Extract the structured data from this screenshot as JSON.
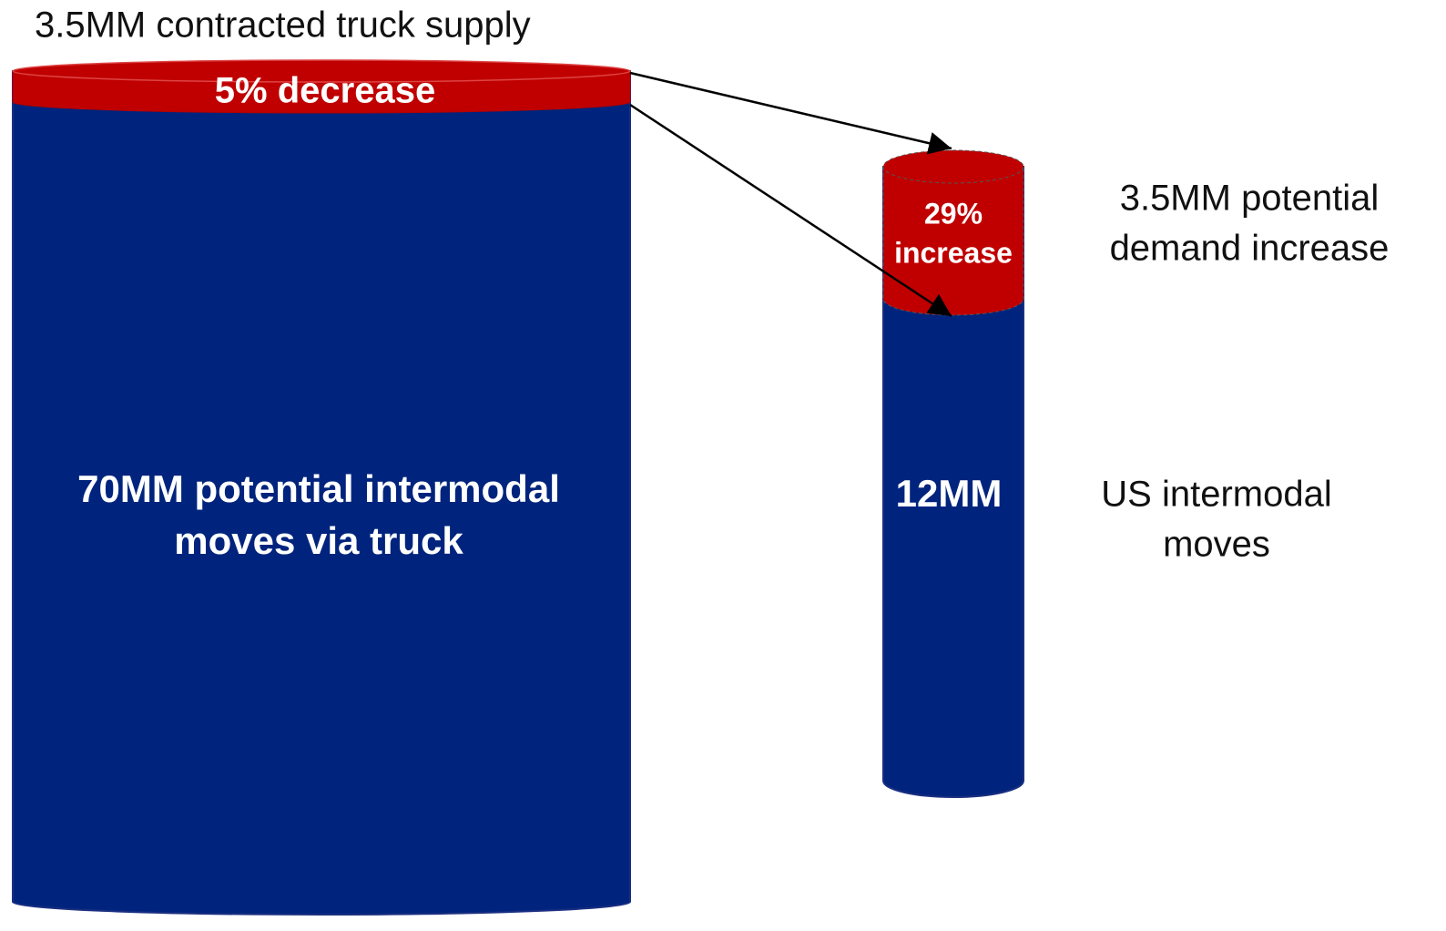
{
  "supply_label": "3.5MM contracted truck supply",
  "large_cylinder": {
    "top_label": "5% decrease",
    "body_lines": [
      "70MM potential intermodal",
      "moves via truck"
    ]
  },
  "small_cylinder": {
    "top_lines": [
      "29%",
      "increase"
    ],
    "body_label": "12MM"
  },
  "demand_label_lines": [
    "3.5MM potential",
    "demand increase"
  ],
  "moves_label_lines": [
    "US intermodal",
    "moves"
  ]
}
